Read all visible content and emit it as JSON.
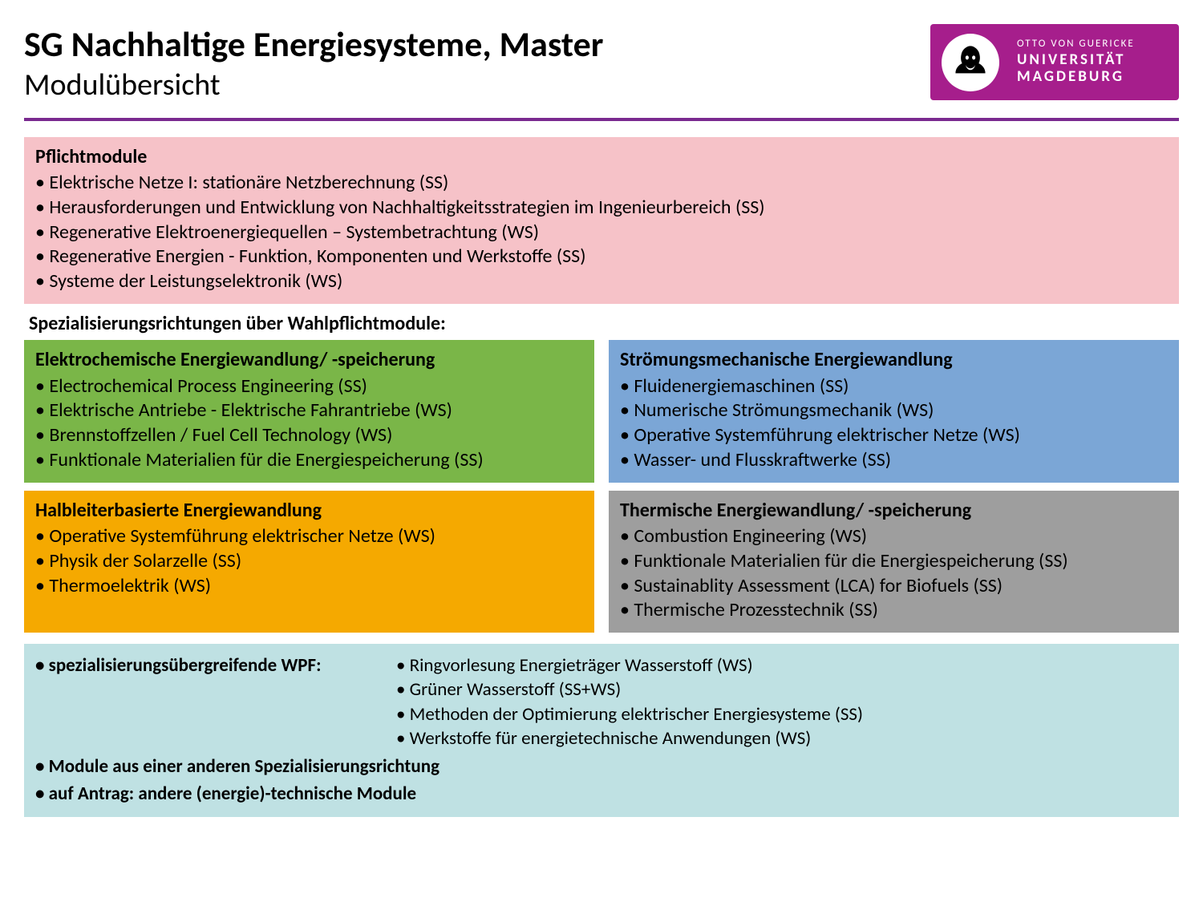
{
  "colors": {
    "divider": "#7a2a8f",
    "logo_bg": "#a61e8c",
    "pflicht_bg": "#f6c2c8",
    "green_bg": "#7ab648",
    "blue_bg": "#7ba6d6",
    "orange_bg": "#f5a900",
    "gray_bg": "#9e9e9e",
    "bottom_bg": "#bfe1e3"
  },
  "header": {
    "title": "SG Nachhaltige Energiesysteme, Master",
    "subtitle": "Modulübersicht",
    "logo_line1": "OTTO VON GUERICKE",
    "logo_line2": "UNIVERSITÄT",
    "logo_line3": "MAGDEBURG"
  },
  "pflicht": {
    "title": "Pflichtmodule",
    "items": [
      "Elektrische Netze I: stationäre Netzberechnung (SS)",
      "Herausforderungen und Entwicklung von Nachhaltigkeitsstrategien im Ingenieurbereich (SS)",
      "Regenerative Elektroenergiequellen – Systembetrachtung (WS)",
      "Regenerative Energien - Funktion, Komponenten und Werkstoffe (SS)",
      "Systeme der Leistungselektronik (WS)"
    ]
  },
  "spec_label": "Spezialisierungsrichtungen über Wahlpflichtmodule:",
  "spec": [
    {
      "title": "Elektrochemische Energiewandlung/ -speicherung",
      "bg": "#7ab648",
      "items": [
        "Electrochemical Process Engineering (SS)",
        "Elektrische Antriebe - Elektrische Fahrantriebe (WS)",
        "Brennstoffzellen / Fuel Cell Technology (WS)",
        "Funktionale Materialien für die Energiespeicherung (SS)"
      ]
    },
    {
      "title": "Strömungsmechanische Energiewandlung",
      "bg": "#7ba6d6",
      "items": [
        "Fluidenergiemaschinen (SS)",
        "Numerische Strömungsmechanik (WS)",
        "Operative Systemführung elektrischer Netze (WS)",
        "Wasser- und Flusskraftwerke (SS)"
      ]
    },
    {
      "title": "Halbleiterbasierte Energiewandlung",
      "bg": "#f5a900",
      "items": [
        "Operative Systemführung elektrischer Netze (WS)",
        "Physik der Solarzelle (SS)",
        "Thermoelektrik (WS)"
      ]
    },
    {
      "title": "Thermische Energiewandlung/ -speicherung",
      "bg": "#9e9e9e",
      "items": [
        "Combustion Engineering (WS)",
        "Funktionale Materialien für die Energiespeicherung (SS)",
        "Sustainablity Assessment (LCA) for Biofuels (SS)",
        "Thermische Prozesstechnik (SS)"
      ]
    }
  ],
  "bottom": {
    "wpf_label": "spezialisierungsübergreifende WPF:",
    "wpf_items": [
      "Ringvorlesung Energieträger Wasserstoff (WS)",
      "Grüner Wasserstoff (SS+WS)",
      "Methoden der Optimierung elektrischer Energiesysteme (SS)",
      "Werkstoffe für energietechnische Anwendungen (WS)"
    ],
    "extra1": "Module aus einer anderen Spezialisierungsrichtung",
    "extra2": "auf Antrag: andere (energie)-technische Module"
  }
}
